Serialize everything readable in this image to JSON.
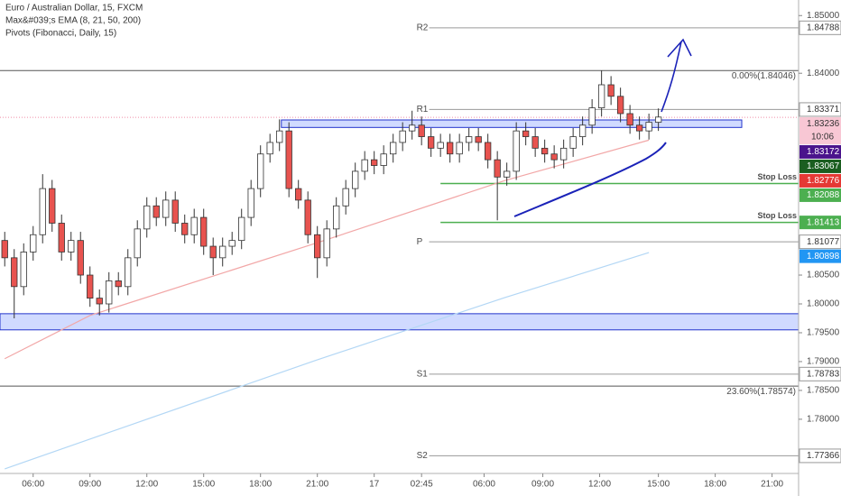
{
  "chart_data": {
    "type": "candlestick",
    "title": "Euro / Australian Dollar, 15, FXCM",
    "indicators": [
      "Max&#039;s EMA (8, 21, 50, 200)",
      "Pivots (Fibonacci, Daily, 15)"
    ],
    "up_color": "#ffffff",
    "down_color": "#e8534f",
    "x": [
      0,
      0.5,
      1,
      1.5,
      2,
      2.5,
      3,
      3.5,
      4,
      4.5,
      5,
      5.5,
      6,
      6.5,
      7,
      7.5,
      8,
      8.5,
      9,
      9.5,
      10,
      10.5,
      11,
      11.5,
      12,
      12.5,
      13,
      13.5,
      14,
      14.5,
      15,
      15.5,
      16,
      16.5,
      17,
      17.5,
      18,
      18.5,
      19,
      19.5,
      20,
      20.5,
      21,
      21.5,
      22,
      22.5,
      23,
      23.5,
      24,
      24.5,
      25,
      25.5,
      26,
      26.5,
      27,
      27.5,
      28,
      28.5,
      29,
      29.5,
      30,
      30.5,
      31,
      31.5,
      32,
      32.5,
      33,
      33.5,
      34,
      34.5
    ],
    "open": [
      1.811,
      1.808,
      1.803,
      1.809,
      1.812,
      1.82,
      1.814,
      1.809,
      1.811,
      1.805,
      1.801,
      1.8,
      1.804,
      1.803,
      1.808,
      1.813,
      1.817,
      1.815,
      1.818,
      1.814,
      1.812,
      1.815,
      1.81,
      1.808,
      1.81,
      1.811,
      1.815,
      1.82,
      1.826,
      1.828,
      1.83,
      1.82,
      1.818,
      1.812,
      1.808,
      1.813,
      1.817,
      1.82,
      1.823,
      1.825,
      1.824,
      1.826,
      1.828,
      1.83,
      1.831,
      1.829,
      1.827,
      1.828,
      1.826,
      1.828,
      1.829,
      1.828,
      1.825,
      1.822,
      1.823,
      1.83,
      1.829,
      1.827,
      1.826,
      1.825,
      1.827,
      1.829,
      1.831,
      1.834,
      1.838,
      1.836,
      1.833,
      1.831,
      1.83,
      1.8315
    ],
    "high": [
      1.8125,
      1.8095,
      1.8105,
      1.8135,
      1.8225,
      1.8215,
      1.8155,
      1.8125,
      1.8125,
      1.8065,
      1.8025,
      1.8055,
      1.8055,
      1.8095,
      1.8145,
      1.8185,
      1.8185,
      1.8195,
      1.8195,
      1.8155,
      1.8165,
      1.8165,
      1.8115,
      1.8115,
      1.8125,
      1.8165,
      1.8215,
      1.8275,
      1.8295,
      1.832,
      1.8315,
      1.8215,
      1.8195,
      1.8135,
      1.8145,
      1.8185,
      1.8215,
      1.8245,
      1.8265,
      1.8265,
      1.8275,
      1.8295,
      1.8315,
      1.8335,
      1.8325,
      1.8305,
      1.8295,
      1.8295,
      1.8295,
      1.8305,
      1.8305,
      1.8295,
      1.8265,
      1.8245,
      1.8315,
      1.8315,
      1.8305,
      1.8285,
      1.8275,
      1.8285,
      1.8305,
      1.8325,
      1.8355,
      1.8405,
      1.8395,
      1.8375,
      1.8345,
      1.8325,
      1.833,
      1.8339
    ],
    "low": [
      1.8065,
      1.7975,
      1.8015,
      1.8075,
      1.8105,
      1.8125,
      1.8075,
      1.8075,
      1.8035,
      1.7995,
      1.798,
      1.7985,
      1.8015,
      1.8015,
      1.8065,
      1.8115,
      1.8135,
      1.8135,
      1.8125,
      1.8105,
      1.8105,
      1.8085,
      1.805,
      1.8065,
      1.8085,
      1.8095,
      1.8135,
      1.8185,
      1.8245,
      1.8265,
      1.8185,
      1.8165,
      1.8105,
      1.8045,
      1.8065,
      1.8115,
      1.8155,
      1.8185,
      1.8215,
      1.8225,
      1.8225,
      1.8245,
      1.8265,
      1.8285,
      1.8275,
      1.8255,
      1.8255,
      1.8245,
      1.8245,
      1.8265,
      1.8265,
      1.8235,
      1.8145,
      1.8205,
      1.8215,
      1.8275,
      1.8255,
      1.8245,
      1.8235,
      1.8235,
      1.8255,
      1.8275,
      1.8295,
      1.8325,
      1.8345,
      1.8315,
      1.8295,
      1.8285,
      1.8285,
      1.83
    ],
    "close": [
      1.808,
      1.803,
      1.809,
      1.812,
      1.82,
      1.814,
      1.809,
      1.811,
      1.805,
      1.801,
      1.8,
      1.804,
      1.803,
      1.808,
      1.813,
      1.817,
      1.815,
      1.818,
      1.814,
      1.812,
      1.815,
      1.81,
      1.808,
      1.81,
      1.811,
      1.815,
      1.82,
      1.826,
      1.828,
      1.83,
      1.82,
      1.818,
      1.812,
      1.808,
      1.813,
      1.817,
      1.82,
      1.823,
      1.825,
      1.824,
      1.826,
      1.828,
      1.83,
      1.831,
      1.829,
      1.827,
      1.828,
      1.826,
      1.828,
      1.829,
      1.828,
      1.825,
      1.822,
      1.823,
      1.83,
      1.829,
      1.827,
      1.826,
      1.825,
      1.827,
      1.829,
      1.831,
      1.834,
      1.838,
      1.836,
      1.833,
      1.831,
      1.83,
      1.8315,
      1.8324
    ],
    "lines": [
      {
        "color": "#f2a7a7",
        "x": [
          0,
          4.5,
          16.4,
          26.4,
          34
        ],
        "values": [
          1.7905,
          1.798,
          1.8105,
          1.8214,
          1.8284
        ]
      },
      {
        "color": "#b3d7f5",
        "x": [
          0,
          16.4,
          26.4,
          34
        ],
        "values": [
          1.7714,
          1.7902,
          1.8011,
          1.8089
        ]
      }
    ],
    "zones": [
      {
        "top": 1.8319,
        "bottom": 1.8306
      },
      {
        "top": 1.7983,
        "bottom": 1.7955
      }
    ],
    "pivots": [
      {
        "name": "R2",
        "value": 1.84788
      },
      {
        "name": "R1",
        "value": 1.83371
      },
      {
        "name": "P",
        "value": 1.81077
      },
      {
        "name": "S1",
        "value": 1.78783
      },
      {
        "name": "S2",
        "value": 1.77366
      }
    ],
    "fibonacci": [
      {
        "label": "0.00%(1.84046)",
        "value": 1.84046
      },
      {
        "label": "23.60%(1.78574)",
        "value": 1.78574
      }
    ],
    "stop_losses": [
      {
        "label": "Stop Loss",
        "value": 1.82088
      },
      {
        "label": "Stop Loss",
        "value": 1.81413
      }
    ],
    "price_badges": [
      {
        "value": 1.83236,
        "color": "#f8c7d4",
        "text_color": "#333333",
        "countdown": "10:06"
      },
      {
        "value": 1.83172,
        "color": "#4a148c",
        "text_color": "#ffffff"
      },
      {
        "value": 1.83067,
        "color": "#1b5e20",
        "text_color": "#ffffff"
      },
      {
        "value": 1.82776,
        "color": "#e53935",
        "text_color": "#ffffff"
      },
      {
        "value": 1.80898,
        "color": "#2196f3",
        "text_color": "#ffffff"
      }
    ],
    "xlim": [
      -0.25,
      41.9
    ],
    "xticks": [
      {
        "value": 1.5,
        "label": "06:00"
      },
      {
        "value": 4.5,
        "label": "09:00"
      },
      {
        "value": 7.5,
        "label": "12:00"
      },
      {
        "value": 10.5,
        "label": "15:00"
      },
      {
        "value": 13.5,
        "label": "18:00"
      },
      {
        "value": 16.5,
        "label": "21:00"
      },
      {
        "value": 19.5,
        "label": "17"
      },
      {
        "value": 22.0,
        "label": "02:45"
      },
      {
        "value": 25.3,
        "label": "06:00"
      },
      {
        "value": 28.4,
        "label": "09:00"
      },
      {
        "value": 31.4,
        "label": "12:00"
      },
      {
        "value": 34.5,
        "label": "15:00"
      },
      {
        "value": 37.5,
        "label": "18:00"
      },
      {
        "value": 40.5,
        "label": "21:00"
      }
    ],
    "ylim": [
      1.7706,
      1.8527
    ],
    "yticks": [
      {
        "value": 1.85,
        "label": "1.85000"
      },
      {
        "value": 1.84,
        "label": "1.84000"
      },
      {
        "value": 1.805,
        "label": "1.80500"
      },
      {
        "value": 1.8,
        "label": "1.80000"
      },
      {
        "value": 1.795,
        "label": "1.79500"
      },
      {
        "value": 1.79,
        "label": "1.79000"
      },
      {
        "value": 1.785,
        "label": "1.78500"
      },
      {
        "value": 1.78,
        "label": "1.78000"
      }
    ]
  }
}
